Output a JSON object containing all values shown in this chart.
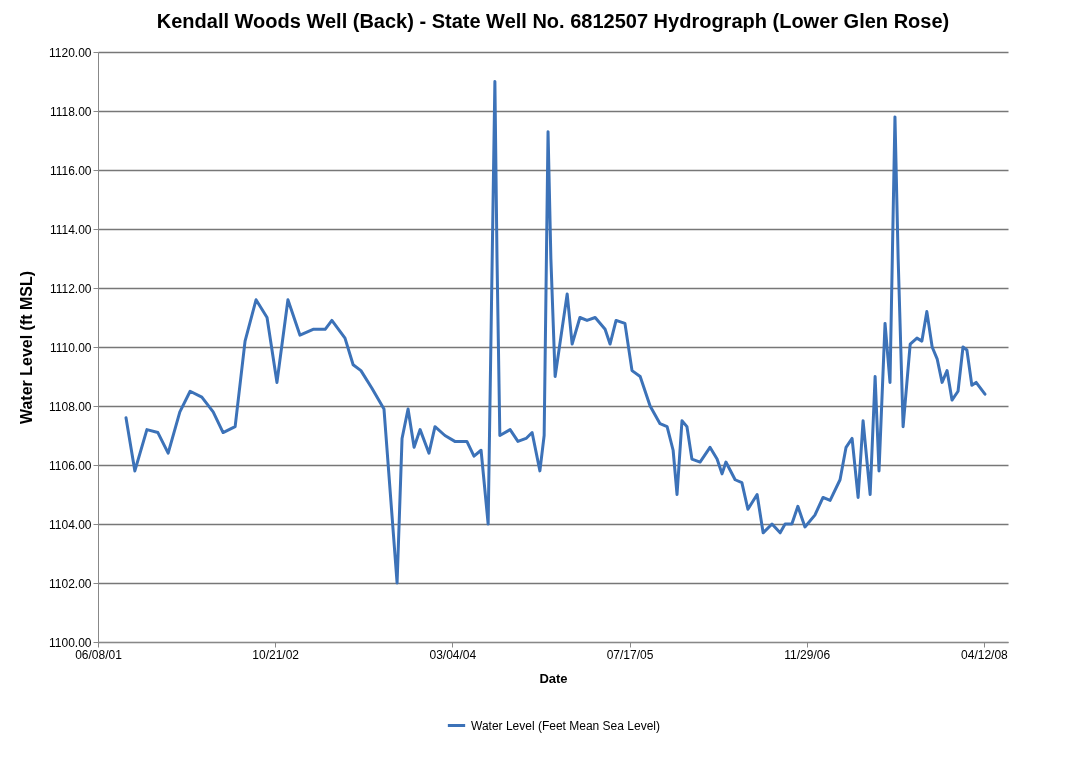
{
  "chart_data": {
    "type": "line",
    "title": "Kendall Woods Well (Back) - State Well No. 6812507 Hydrograph (Lower Glen Rose)",
    "xlabel": "Date",
    "ylabel": "Water Level (ft MSL)",
    "x": [
      "2001-08-26",
      "2001-09-20",
      "2001-10-24",
      "2001-11-24",
      "2001-12-23",
      "2002-01-25",
      "2002-02-23",
      "2002-03-28",
      "2002-04-29",
      "2002-05-27",
      "2002-06-30",
      "2002-07-28",
      "2002-08-28",
      "2002-09-28",
      "2002-10-26",
      "2002-11-26",
      "2002-12-30",
      "2003-02-05",
      "2003-03-11",
      "2003-03-30",
      "2003-05-06",
      "2003-05-29",
      "2003-06-20",
      "2003-07-21",
      "2003-08-24",
      "2003-09-30",
      "2003-10-14",
      "2003-10-31",
      "2003-11-17",
      "2003-12-04",
      "2003-12-29",
      "2004-01-15",
      "2004-02-12",
      "2004-03-11",
      "2004-04-14",
      "2004-05-04",
      "2004-05-24",
      "2004-06-13",
      "2004-07-02",
      "2004-07-08",
      "2004-07-16",
      "2004-08-14",
      "2004-09-05",
      "2004-09-28",
      "2004-10-15",
      "2004-11-06",
      "2004-11-18",
      "2004-11-29",
      "2004-12-07",
      "2004-12-19",
      "2005-01-22",
      "2005-02-05",
      "2005-02-27",
      "2005-03-19",
      "2005-04-11",
      "2005-05-09",
      "2005-05-23",
      "2005-06-09",
      "2005-07-04",
      "2005-07-24",
      "2005-08-16",
      "2005-09-13",
      "2005-10-11",
      "2005-10-31",
      "2005-11-17",
      "2005-11-28",
      "2005-12-12",
      "2005-12-26",
      "2006-01-09",
      "2006-02-01",
      "2006-03-01",
      "2006-03-21",
      "2006-04-04",
      "2006-04-15",
      "2006-05-11",
      "2006-05-30",
      "2006-06-16",
      "2006-07-12",
      "2006-07-29",
      "2006-08-23",
      "2006-09-15",
      "2006-09-29",
      "2006-10-18",
      "2006-11-04",
      "2006-11-24",
      "2006-12-22",
      "2007-01-14",
      "2007-02-03",
      "2007-03-03",
      "2007-03-20",
      "2007-04-06",
      "2007-04-23",
      "2007-05-07",
      "2007-05-27",
      "2007-06-10",
      "2007-06-21",
      "2007-07-08",
      "2007-07-22",
      "2007-08-05",
      "2007-08-14",
      "2007-08-28",
      "2007-09-17",
      "2007-10-06",
      "2007-10-20",
      "2007-11-03",
      "2007-11-18",
      "2007-12-02",
      "2007-12-16",
      "2007-12-30",
      "2008-01-13",
      "2008-01-30",
      "2008-02-13",
      "2008-02-24",
      "2008-03-09",
      "2008-03-21",
      "2008-04-15"
    ],
    "series": [
      {
        "name": "Water Level (Feet Mean Sea Level)",
        "color": "#3c72b8",
        "values": [
          1107.6,
          1105.8,
          1107.2,
          1107.1,
          1106.4,
          1107.8,
          1108.5,
          1108.3,
          1107.8,
          1107.1,
          1107.3,
          1110.2,
          1111.6,
          1111.0,
          1108.8,
          1111.6,
          1110.4,
          1110.6,
          1110.6,
          1110.9,
          1110.3,
          1109.4,
          1109.2,
          1108.6,
          1107.9,
          1102.0,
          1106.9,
          1107.9,
          1106.6,
          1107.2,
          1106.4,
          1107.3,
          1107.0,
          1106.8,
          1106.8,
          1106.3,
          1106.5,
          1104.0,
          1119.0,
          1113.0,
          1107.0,
          1107.2,
          1106.8,
          1106.9,
          1107.1,
          1105.8,
          1107.0,
          1117.3,
          1113.0,
          1109.0,
          1111.8,
          1110.1,
          1111.0,
          1110.9,
          1111.0,
          1110.6,
          1110.1,
          1110.9,
          1110.8,
          1109.2,
          1109.0,
          1108.0,
          1107.4,
          1107.3,
          1106.5,
          1105.0,
          1107.5,
          1107.3,
          1106.2,
          1106.1,
          1106.6,
          1106.2,
          1105.7,
          1106.1,
          1105.5,
          1105.4,
          1104.5,
          1105.0,
          1103.7,
          1104.0,
          1103.7,
          1104.0,
          1104.0,
          1104.6,
          1103.9,
          1104.3,
          1104.9,
          1104.8,
          1105.5,
          1106.6,
          1106.9,
          1104.9,
          1107.5,
          1105.0,
          1109.0,
          1105.8,
          1110.8,
          1108.8,
          1117.8,
          1113.0,
          1107.3,
          1110.1,
          1110.3,
          1110.2,
          1111.2,
          1110.0,
          1109.6,
          1108.8,
          1109.2,
          1108.2,
          1108.5,
          1110.0,
          1109.9,
          1108.7,
          1108.8,
          1108.4
        ]
      }
    ],
    "xlim": [
      "2001-06-08",
      "2008-06-19"
    ],
    "xticks": [
      {
        "value": "2001-06-08",
        "label": "06/08/01"
      },
      {
        "value": "2002-10-21",
        "label": "10/21/02"
      },
      {
        "value": "2004-03-04",
        "label": "03/04/04"
      },
      {
        "value": "2005-07-17",
        "label": "07/17/05"
      },
      {
        "value": "2006-11-29",
        "label": "11/29/06"
      },
      {
        "value": "2008-04-12",
        "label": "04/12/08"
      }
    ],
    "ylim": [
      1100,
      1120
    ],
    "yticks": [
      {
        "value": 1100,
        "label": "1100.00"
      },
      {
        "value": 1102,
        "label": "1102.00"
      },
      {
        "value": 1104,
        "label": "1104.00"
      },
      {
        "value": 1106,
        "label": "1106.00"
      },
      {
        "value": 1108,
        "label": "1108.00"
      },
      {
        "value": 1110,
        "label": "1110.00"
      },
      {
        "value": 1112,
        "label": "1112.00"
      },
      {
        "value": 1114,
        "label": "1114.00"
      },
      {
        "value": 1116,
        "label": "1116.00"
      },
      {
        "value": 1118,
        "label": "1118.00"
      },
      {
        "value": 1120,
        "label": "1120.00"
      }
    ],
    "grid": "y",
    "legend": "bottom",
    "marker": "none",
    "line_style": "solid"
  }
}
